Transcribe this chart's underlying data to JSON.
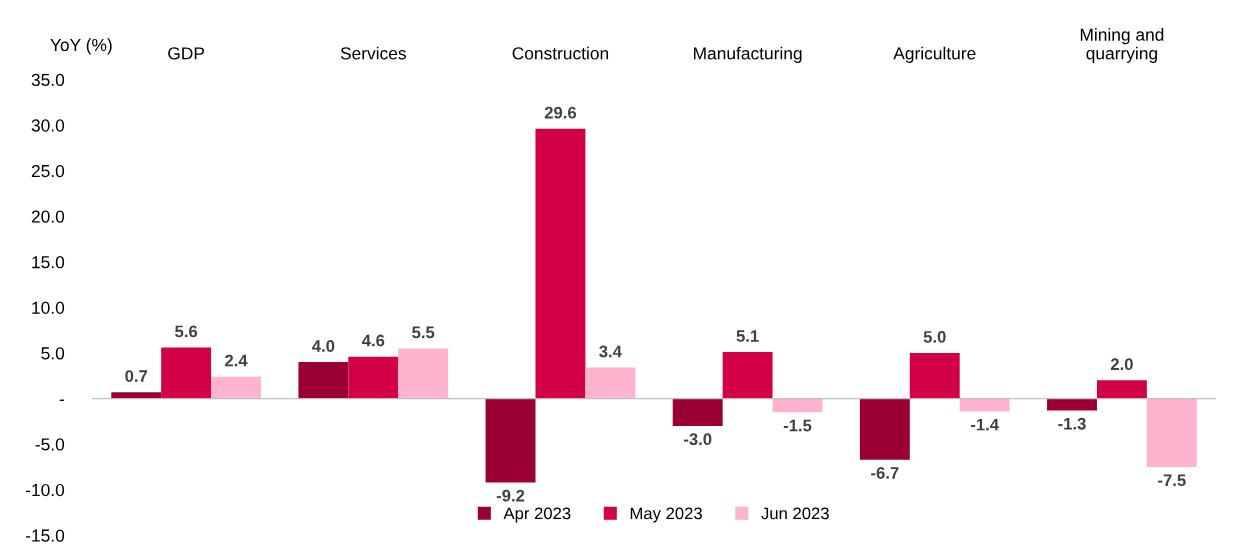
{
  "chart_data": {
    "type": "bar",
    "ylabel": "YoY (%)",
    "categories": [
      "GDP",
      "Services",
      "Construction",
      "Manufacturing",
      "Agriculture",
      "Mining and\nquarrying"
    ],
    "series": [
      {
        "name": "Apr 2023",
        "color": "#9b0034",
        "values": [
          0.7,
          4.0,
          -9.2,
          -3.0,
          -6.7,
          -1.3
        ],
        "value_labels": [
          "0.7",
          "4.0",
          "-9.2",
          "-3.0",
          "-6.7",
          "-1.3"
        ]
      },
      {
        "name": "May 2023",
        "color": "#d10047",
        "values": [
          5.6,
          4.6,
          29.6,
          5.1,
          5.0,
          2.0
        ],
        "value_labels": [
          "5.6",
          "4.6",
          "29.6",
          "5.1",
          "5.0",
          "2.0"
        ]
      },
      {
        "name": "Jun 2023",
        "color": "#ffb3cf",
        "values": [
          2.4,
          5.5,
          3.4,
          -1.5,
          -1.4,
          -7.5
        ],
        "value_labels": [
          "2.4",
          "5.5",
          "3.4",
          "-1.5",
          "-1.4",
          "-7.5"
        ]
      }
    ],
    "ylim": [
      -15,
      35
    ],
    "yticks": [
      {
        "value": -15,
        "label": "-15.0"
      },
      {
        "value": -10,
        "label": "-10.0"
      },
      {
        "value": -5,
        "label": "-5.0"
      },
      {
        "value": 0,
        "label": "-"
      },
      {
        "value": 5,
        "label": "5.0"
      },
      {
        "value": 10,
        "label": "10.0"
      },
      {
        "value": 15,
        "label": "15.0"
      },
      {
        "value": 20,
        "label": "20.0"
      },
      {
        "value": 25,
        "label": "25.0"
      },
      {
        "value": 30,
        "label": "30.0"
      },
      {
        "value": 35,
        "label": "35.0"
      }
    ],
    "legend": "bottom"
  }
}
